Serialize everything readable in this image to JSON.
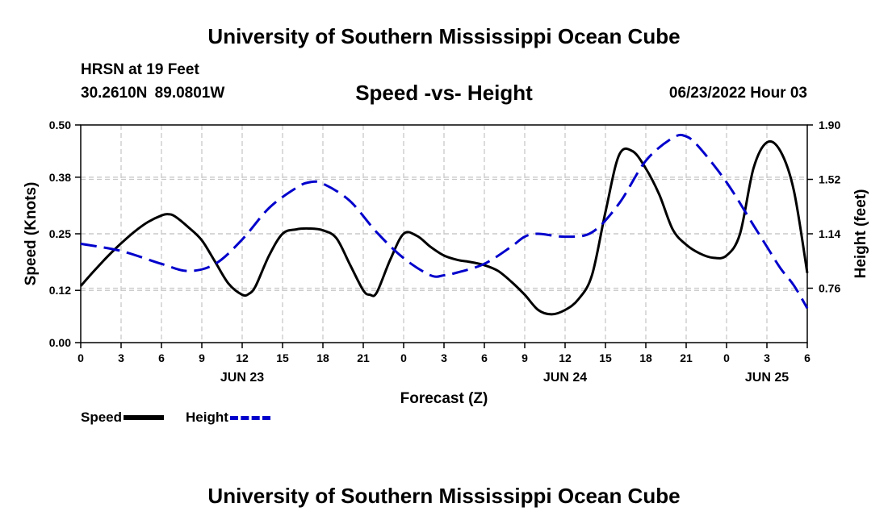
{
  "header": {
    "title": "University of Southern Mississippi Ocean Cube",
    "station": "HRSN at 19 Feet",
    "coordinates": "30.2610N  89.0801W",
    "subtitle": "Speed -vs- Height",
    "datestamp": "06/23/2022 Hour 03"
  },
  "footer": {
    "title": "University of Southern Mississippi Ocean Cube"
  },
  "legend": {
    "speed_label": "Speed",
    "height_label": "Height"
  },
  "chart_data": {
    "type": "line",
    "title": "Speed -vs- Height",
    "xlabel": "Forecast (Z)",
    "ylabel": "Speed (Knots)",
    "y2label": "Height (feet)",
    "xlim": [
      0,
      54
    ],
    "ylim": [
      0,
      0.5
    ],
    "y2lim": [
      0.38,
      1.9
    ],
    "x_ticks": [
      0,
      3,
      6,
      9,
      12,
      15,
      18,
      21,
      24,
      27,
      30,
      33,
      36,
      39,
      42,
      45,
      48,
      51,
      54
    ],
    "x_tick_labels": [
      "0",
      "3",
      "6",
      "9",
      "12",
      "15",
      "18",
      "21",
      "0",
      "3",
      "6",
      "9",
      "12",
      "15",
      "18",
      "21",
      "0",
      "3",
      "6"
    ],
    "day_labels": [
      {
        "x": 12,
        "label": "JUN 23"
      },
      {
        "x": 36,
        "label": "JUN 24"
      },
      {
        "x": 51,
        "label": "JUN 25"
      }
    ],
    "y_ticks": [
      0.0,
      0.12,
      0.25,
      0.38,
      0.5
    ],
    "y_tick_labels": [
      "0.00",
      "0.12",
      "0.25",
      "0.38",
      "0.50"
    ],
    "y2_ticks": [
      0.76,
      1.14,
      1.52,
      1.9
    ],
    "y2_tick_labels": [
      "0.76",
      "1.14",
      "1.52",
      "1.90"
    ],
    "grid": true,
    "legend_position": "bottom-left",
    "series": [
      {
        "name": "Speed",
        "axis": "left",
        "color": "#000000",
        "style": "solid",
        "x": [
          0,
          1,
          2,
          3,
          4,
          5,
          6,
          6.5,
          7,
          8,
          9,
          10,
          11,
          12,
          12.5,
          13,
          14,
          15,
          16,
          17,
          18,
          19,
          20,
          21,
          21.5,
          22,
          23,
          24,
          25,
          26,
          27,
          28,
          29,
          30,
          31,
          32,
          33,
          34,
          35,
          36,
          37,
          38,
          39,
          40,
          41,
          42,
          43,
          44,
          45,
          46,
          47,
          48,
          49,
          50,
          51,
          52,
          53,
          54
        ],
        "y": [
          0.13,
          0.165,
          0.198,
          0.228,
          0.255,
          0.277,
          0.292,
          0.295,
          0.29,
          0.265,
          0.235,
          0.185,
          0.135,
          0.11,
          0.112,
          0.13,
          0.2,
          0.25,
          0.26,
          0.262,
          0.258,
          0.24,
          0.18,
          0.12,
          0.11,
          0.115,
          0.19,
          0.25,
          0.245,
          0.22,
          0.2,
          0.19,
          0.185,
          0.178,
          0.165,
          0.14,
          0.11,
          0.075,
          0.065,
          0.075,
          0.1,
          0.155,
          0.3,
          0.43,
          0.44,
          0.4,
          0.34,
          0.26,
          0.225,
          0.205,
          0.195,
          0.2,
          0.25,
          0.4,
          0.46,
          0.44,
          0.35,
          0.16
        ]
      },
      {
        "name": "Height",
        "axis": "right",
        "color": "#0000cc",
        "style": "dashed",
        "x": [
          0,
          3,
          6,
          8,
          10,
          12,
          14,
          16,
          17,
          18,
          20,
          22,
          24,
          26,
          27,
          28,
          30,
          32,
          33,
          34,
          36,
          38,
          40,
          42,
          44,
          45,
          46,
          48,
          50,
          51,
          52,
          53,
          54
        ],
        "y": [
          1.07,
          1.02,
          0.93,
          0.88,
          0.93,
          1.1,
          1.32,
          1.46,
          1.5,
          1.49,
          1.37,
          1.15,
          0.97,
          0.85,
          0.85,
          0.87,
          0.93,
          1.05,
          1.12,
          1.14,
          1.12,
          1.15,
          1.35,
          1.65,
          1.81,
          1.82,
          1.74,
          1.5,
          1.2,
          1.05,
          0.9,
          0.78,
          0.62
        ]
      }
    ]
  }
}
